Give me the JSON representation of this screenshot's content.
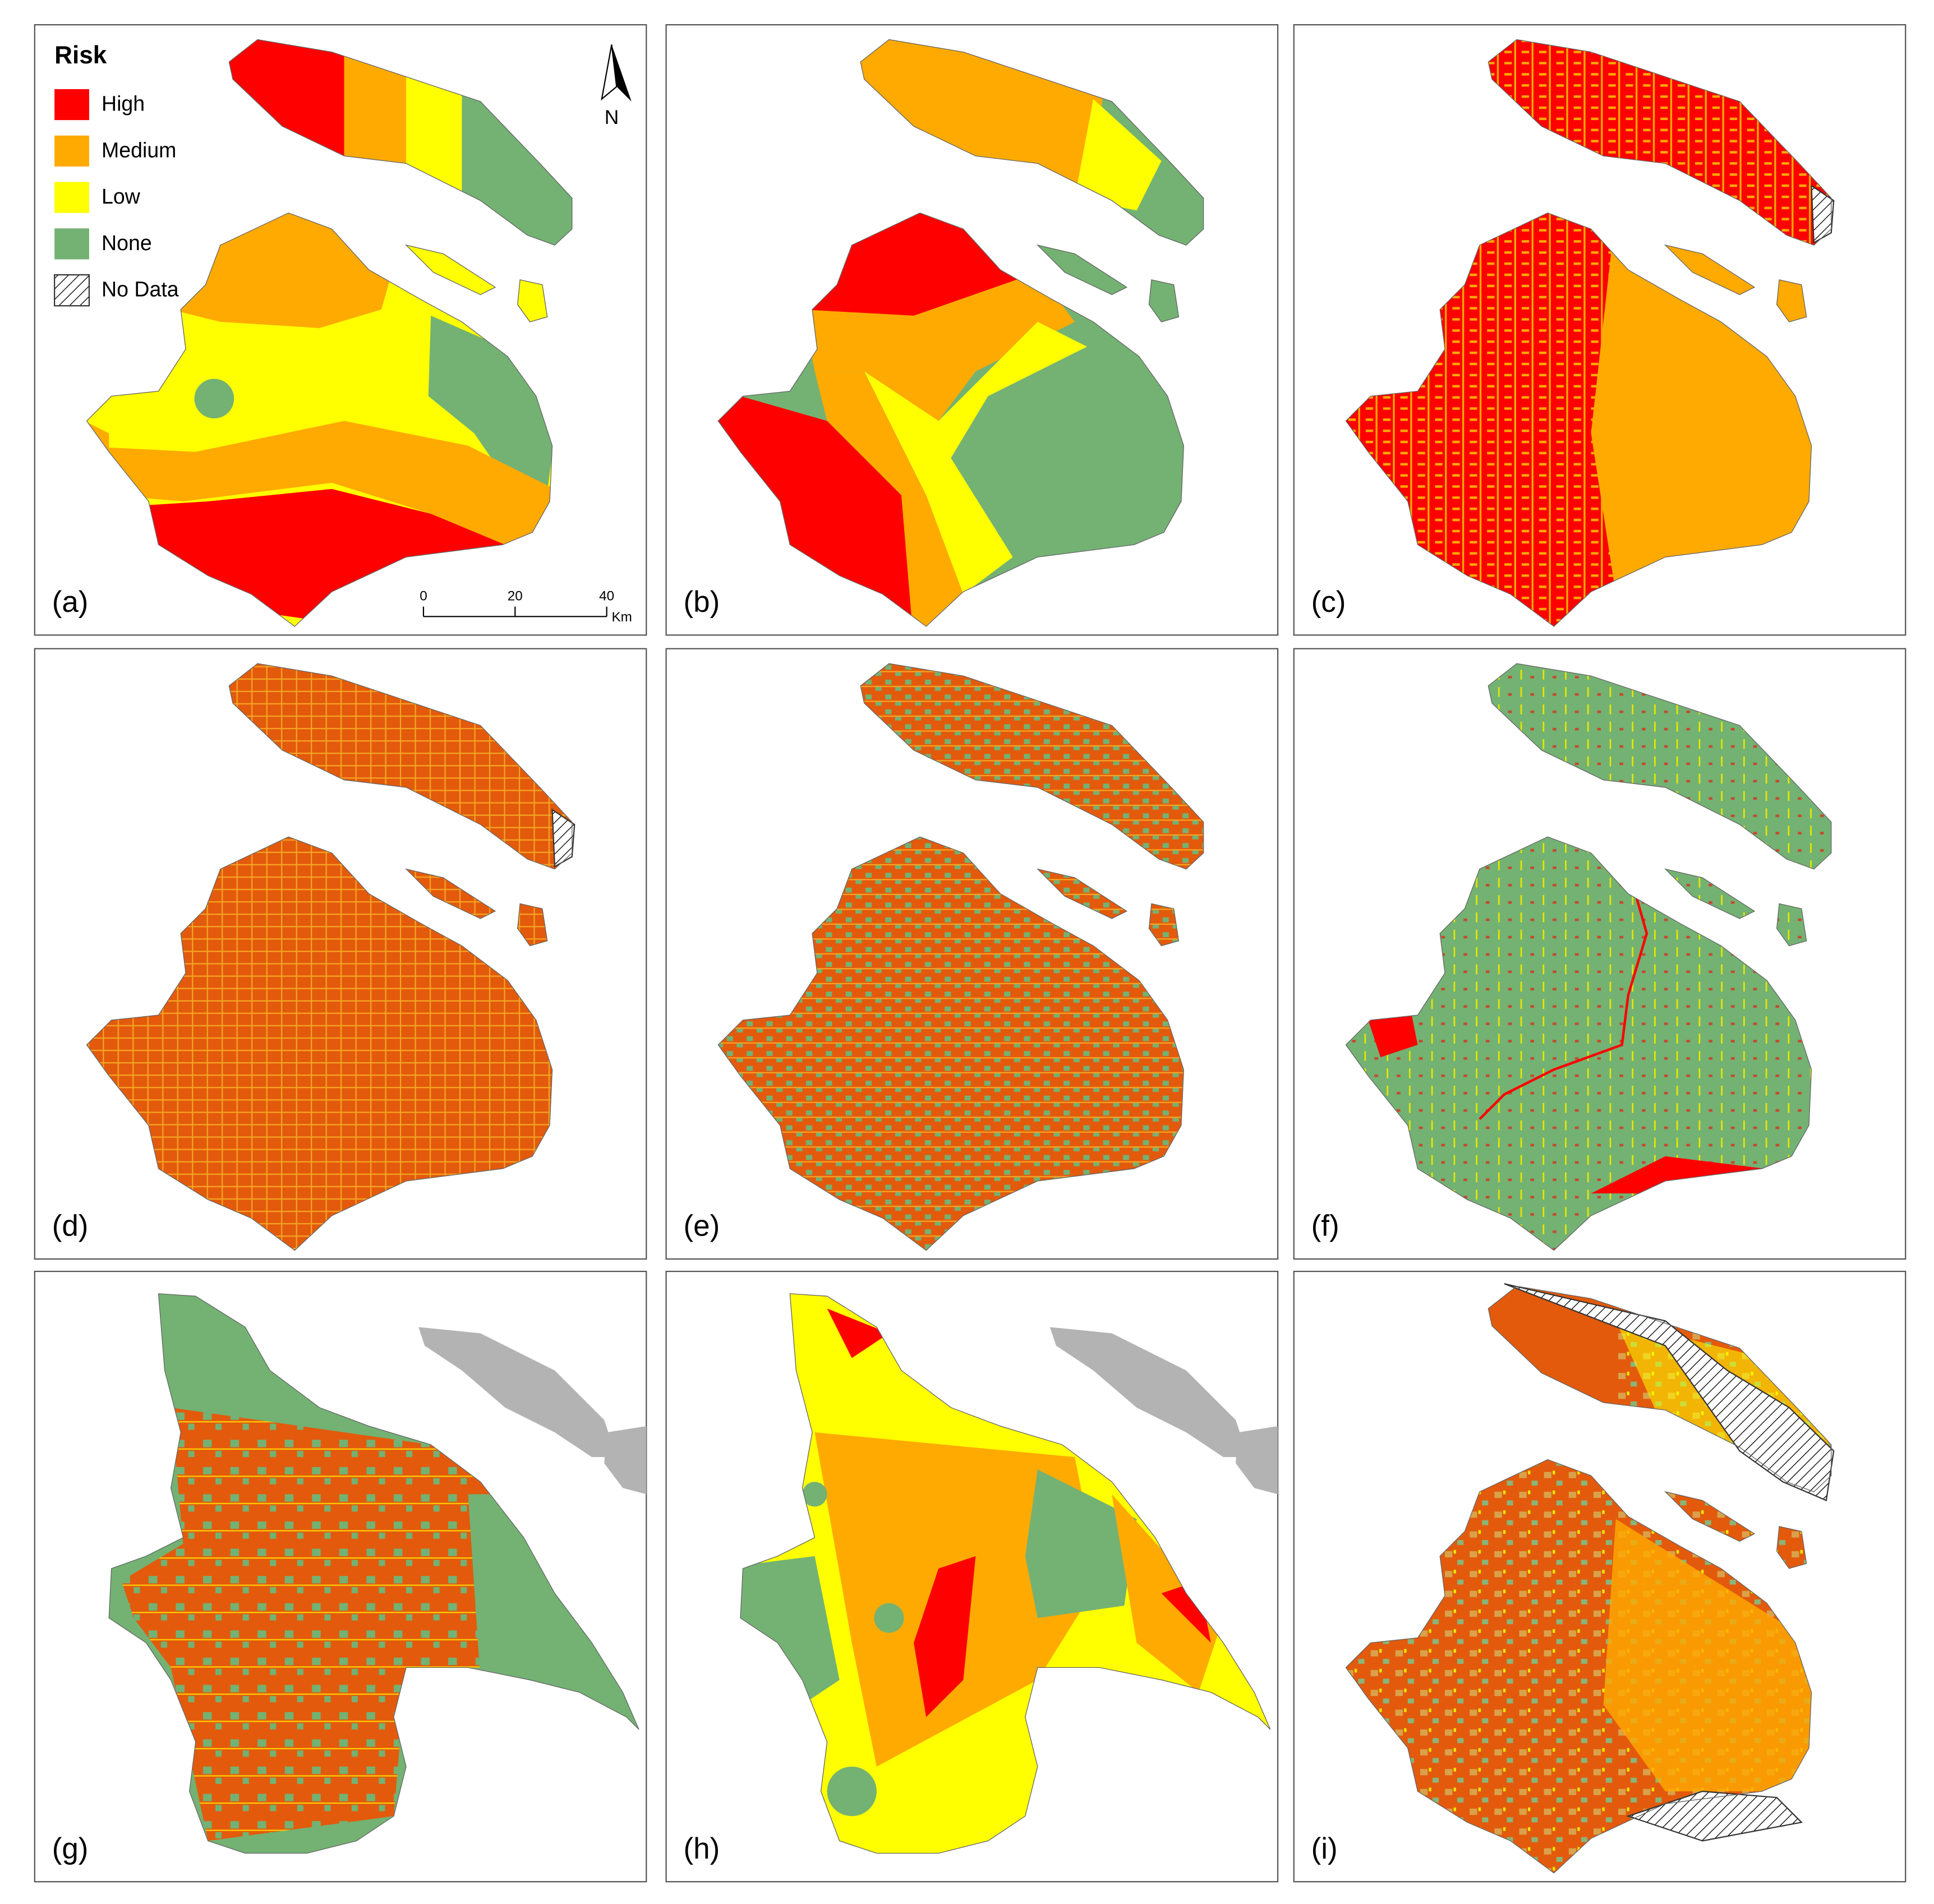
{
  "legend": {
    "title": "Risk",
    "items": [
      {
        "label": "High",
        "color": "#ff0000"
      },
      {
        "label": "Medium",
        "color": "#ffaa00"
      },
      {
        "label": "Low",
        "color": "#ffff00"
      },
      {
        "label": "None",
        "color": "#73b273"
      },
      {
        "label": "No Data",
        "pattern": "hatch"
      }
    ]
  },
  "north": "N",
  "scale_bar": {
    "ticks": [
      "0",
      "20",
      "40"
    ],
    "unit": "Km"
  },
  "panels": [
    {
      "label": "(a)"
    },
    {
      "label": "(b)"
    },
    {
      "label": "(c)"
    },
    {
      "label": "(d)"
    },
    {
      "label": "(e)"
    },
    {
      "label": "(f)"
    },
    {
      "label": "(g)"
    },
    {
      "label": "(h)"
    },
    {
      "label": "(i)"
    }
  ]
}
